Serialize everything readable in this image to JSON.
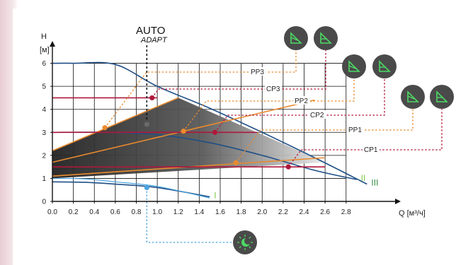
{
  "chart_data": {
    "type": "line",
    "xlabel": "Q [м³/ч]",
    "ylabel_top": "H",
    "ylabel_unit": "[м]",
    "xlim": [
      0,
      3.2
    ],
    "ylim": [
      0,
      7
    ],
    "x_ticks": [
      "0.0",
      "0.2",
      "0.4",
      "0.6",
      "0.8",
      "1.0",
      "1.2",
      "1.4",
      "1.6",
      "1.8",
      "2.0",
      "2.2",
      "2.4",
      "2.6",
      "2.8"
    ],
    "y_ticks": [
      "0",
      "1",
      "2",
      "3",
      "4",
      "5",
      "6"
    ],
    "grid": true,
    "auto_label": "AUTO",
    "auto_sub_label": "ADAPT",
    "auto_x": 0.9,
    "max_curves": [
      {
        "name": "III",
        "color": "#1f4f86",
        "label_color": "#2e8b3a",
        "x": [
          0,
          0.2,
          0.6,
          1.0,
          1.5,
          2.0,
          2.5,
          3.0
        ],
        "y": [
          6.0,
          6.0,
          5.95,
          5.0,
          4.05,
          3.0,
          1.9,
          0.75
        ]
      },
      {
        "name": "II",
        "color": "#1f4f86",
        "label_color": "#7fc64a",
        "x": [
          0,
          0.5,
          1.0,
          1.5,
          2.0,
          2.5,
          2.9
        ],
        "y": [
          3.0,
          3.0,
          2.9,
          2.55,
          2.0,
          1.35,
          0.95
        ]
      },
      {
        "name": "I",
        "color": "#1f4f86",
        "label_color": "#7fc64a",
        "x": [
          0,
          0.3,
          0.6,
          1.0,
          1.5
        ],
        "y": [
          0.85,
          0.83,
          0.75,
          0.6,
          0.2
        ]
      },
      {
        "name": "",
        "color": "#4aa3df",
        "label_color": "#4aa3df",
        "x": [
          0,
          0.3,
          0.6,
          1.0,
          1.5
        ],
        "y": [
          1.0,
          0.98,
          0.85,
          0.65,
          0.15
        ]
      }
    ],
    "shaded_area": {
      "x": [
        0,
        1.2,
        2.6,
        0
      ],
      "y": [
        2.2,
        4.5,
        1.7,
        1.0
      ]
    },
    "proportional_curves": [
      {
        "name": "PP3",
        "x": [
          0,
          1.2
        ],
        "y": [
          2.2,
          4.5
        ],
        "color": "#e98a2e"
      },
      {
        "name": "PP2",
        "x": [
          0,
          2.5
        ],
        "y": [
          1.7,
          4.4
        ],
        "color": "#e98a2e"
      },
      {
        "name": "PP1",
        "x": [
          0,
          2.6
        ],
        "y": [
          1.1,
          1.9
        ],
        "color": "#e98a2e"
      }
    ],
    "constant_curves": [
      {
        "name": "CP3",
        "x": [
          0,
          1.0
        ],
        "y": [
          4.5,
          4.5
        ],
        "color": "#b0173b"
      },
      {
        "name": "CP2",
        "x": [
          0,
          1.95
        ],
        "y": [
          3.0,
          3.0
        ],
        "color": "#b0173b"
      },
      {
        "name": "CP1",
        "x": [
          0,
          2.6
        ],
        "y": [
          1.5,
          1.5
        ],
        "color": "#b0173b"
      }
    ],
    "operating_points": [
      {
        "series": "PP3",
        "x": 0.5,
        "y": 3.2,
        "color": "#e98a2e"
      },
      {
        "series": "PP2",
        "x": 1.25,
        "y": 3.05,
        "color": "#e98a2e"
      },
      {
        "series": "PP1",
        "x": 1.75,
        "y": 1.68,
        "color": "#e98a2e"
      },
      {
        "series": "CP3",
        "x": 0.95,
        "y": 4.5,
        "color": "#b0173b"
      },
      {
        "series": "CP2",
        "x": 1.55,
        "y": 3.0,
        "color": "#b0173b"
      },
      {
        "series": "CP1",
        "x": 2.25,
        "y": 1.5,
        "color": "#b0173b"
      },
      {
        "series": "AUTO",
        "x": 0.9,
        "y": 3.35,
        "color": "#6b6b6b"
      },
      {
        "series": "night",
        "x": 0.9,
        "y": 0.6,
        "color": "#4aa3df"
      }
    ]
  },
  "callouts": [
    {
      "label": "PP3",
      "target": "PP3"
    },
    {
      "label": "CP3",
      "target": "CP3"
    },
    {
      "label": "PP2",
      "target": "PP2"
    },
    {
      "label": "CP2",
      "target": "CP2"
    },
    {
      "label": "PP1",
      "target": "PP1"
    },
    {
      "label": "CP1",
      "target": "CP1"
    }
  ],
  "mode_icons": [
    {
      "icon": "proportional-pressure-icon",
      "group": 3
    },
    {
      "icon": "constant-pressure-icon",
      "group": 3
    },
    {
      "icon": "proportional-pressure-icon",
      "group": 2
    },
    {
      "icon": "constant-pressure-icon",
      "group": 2
    },
    {
      "icon": "proportional-pressure-icon",
      "group": 1
    },
    {
      "icon": "constant-pressure-icon",
      "group": 1
    },
    {
      "icon": "night-mode-icon",
      "group": 0
    }
  ],
  "colors": {
    "icon_bg": "#4a4a4a",
    "icon_fg": "#4cd964",
    "grid": "#111111",
    "shade_dark": "#2a2a2a",
    "shade_light": "#e6e6e6"
  }
}
